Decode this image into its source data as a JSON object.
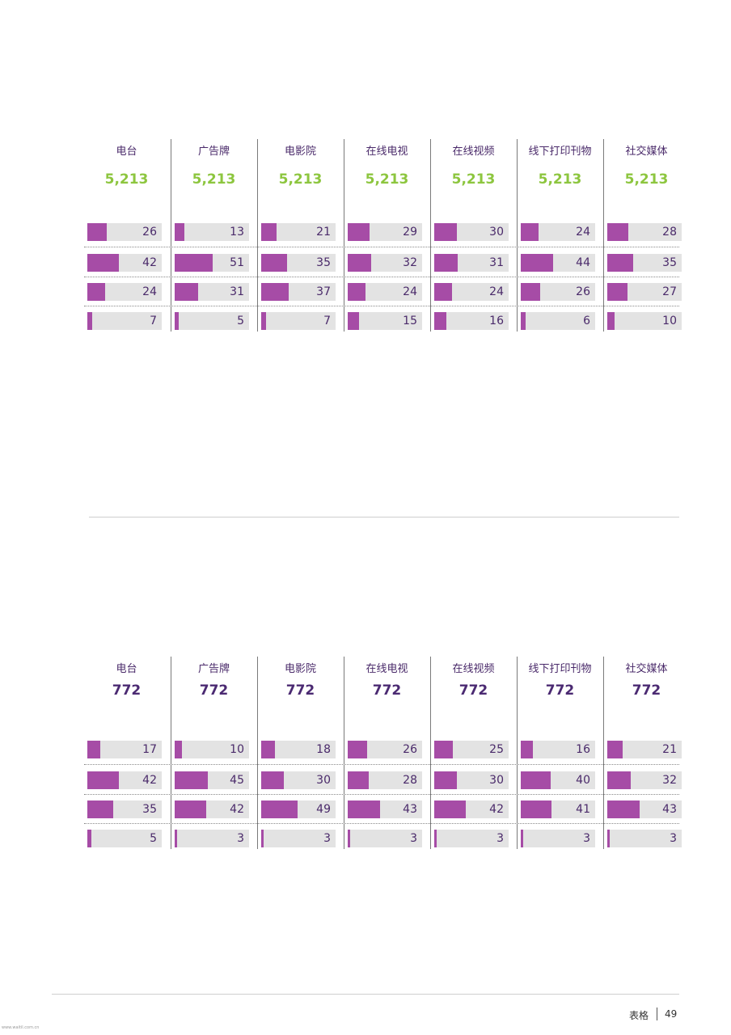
{
  "colors": {
    "bar": "#a64ca6",
    "track": "#e3e3e3",
    "total_top": "#8dc63f",
    "total_bottom": "#4b2a72",
    "header": "#4a2a6a"
  },
  "chart_data": [
    {
      "type": "table",
      "categories": [
        "电台",
        "广告牌",
        "电影院",
        "在线电视",
        "在线视频",
        "线下打印刊物",
        "社交媒体"
      ],
      "totals": [
        "5,213",
        "5,213",
        "5,213",
        "5,213",
        "5,213",
        "5,213",
        "5,213"
      ],
      "rows": [
        [
          26,
          13,
          21,
          29,
          30,
          24,
          28
        ],
        [
          42,
          51,
          35,
          32,
          31,
          44,
          35
        ],
        [
          24,
          31,
          37,
          24,
          24,
          26,
          27
        ],
        [
          7,
          5,
          7,
          15,
          16,
          6,
          10
        ]
      ]
    },
    {
      "type": "table",
      "categories": [
        "电台",
        "广告牌",
        "电影院",
        "在线电视",
        "在线视频",
        "线下打印刊物",
        "社交媒体"
      ],
      "totals": [
        "772",
        "772",
        "772",
        "772",
        "772",
        "772",
        "772"
      ],
      "rows": [
        [
          17,
          10,
          18,
          26,
          25,
          16,
          21
        ],
        [
          42,
          45,
          30,
          28,
          30,
          40,
          32
        ],
        [
          35,
          42,
          49,
          43,
          42,
          41,
          43
        ],
        [
          5,
          3,
          3,
          3,
          3,
          3,
          3
        ]
      ]
    }
  ],
  "footer": {
    "section": "表格",
    "page": "49"
  },
  "watermark": "www.waitil.com.cn"
}
